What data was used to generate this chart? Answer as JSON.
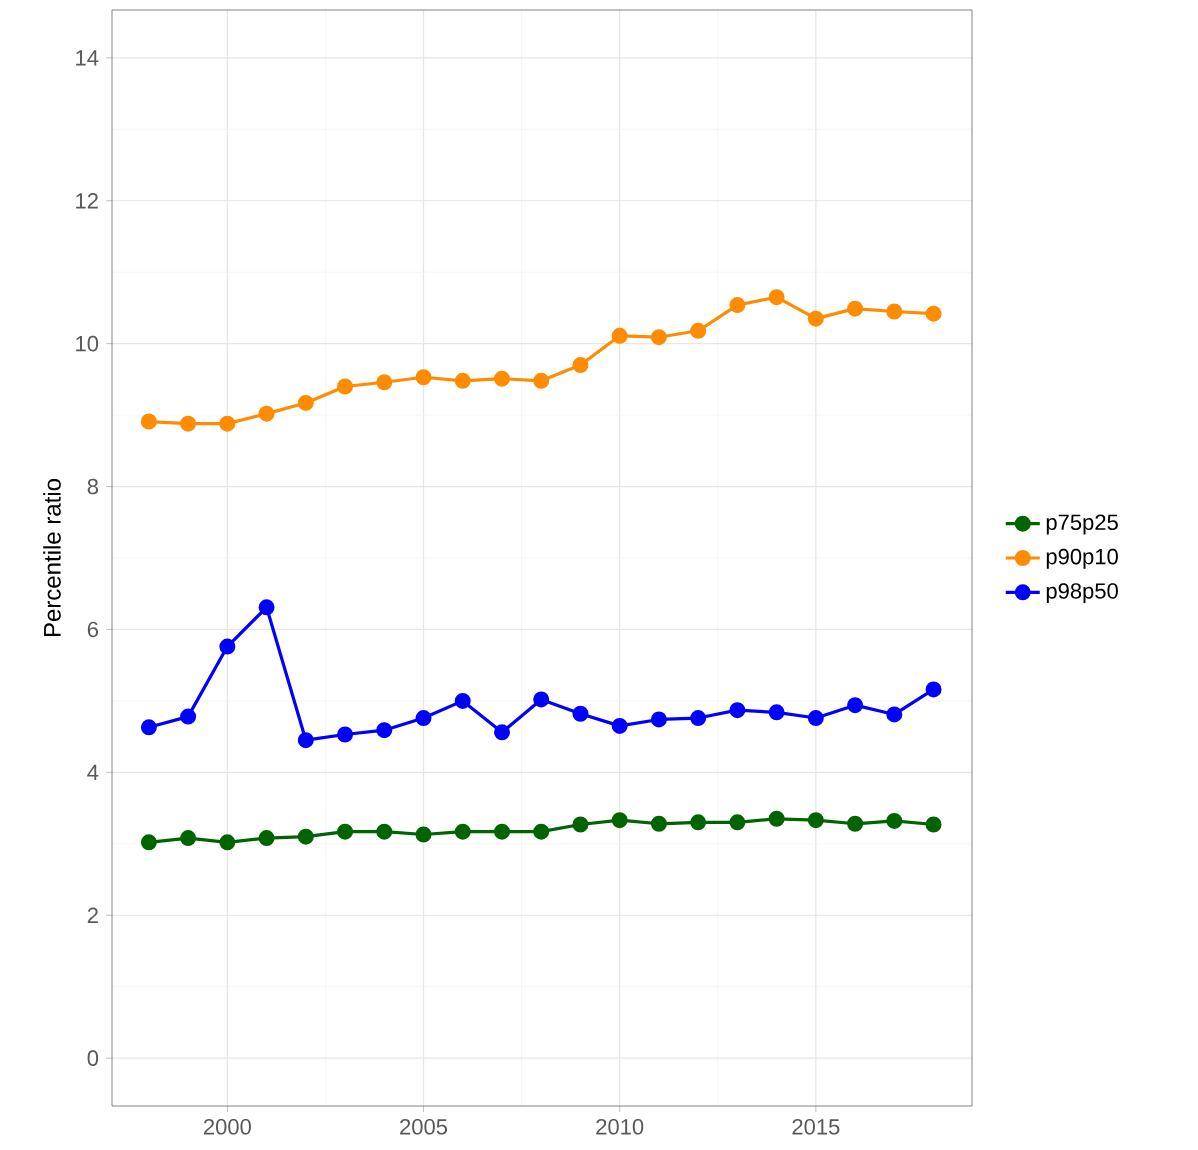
{
  "chart_data": {
    "type": "line",
    "ylabel": "Percentile ratio",
    "x": [
      1998,
      1999,
      2000,
      2001,
      2002,
      2003,
      2004,
      2005,
      2006,
      2007,
      2008,
      2009,
      2010,
      2011,
      2012,
      2013,
      2014,
      2015,
      2016,
      2017,
      2018
    ],
    "series": [
      {
        "name": "p75p25",
        "color": "#006400",
        "values": [
          3.02,
          3.08,
          3.02,
          3.08,
          3.1,
          3.17,
          3.17,
          3.13,
          3.17,
          3.17,
          3.17,
          3.27,
          3.33,
          3.28,
          3.3,
          3.3,
          3.35,
          3.33,
          3.28,
          3.32,
          3.27
        ]
      },
      {
        "name": "p90p10",
        "color": "#ff8c00",
        "values": [
          8.91,
          8.88,
          8.88,
          9.02,
          9.17,
          9.4,
          9.46,
          9.53,
          9.48,
          9.51,
          9.48,
          9.7,
          10.11,
          10.09,
          10.18,
          10.54,
          10.65,
          10.35,
          10.49,
          10.45,
          10.42
        ]
      },
      {
        "name": "p98p50",
        "color": "#0000ff",
        "values": [
          4.63,
          4.78,
          5.76,
          6.31,
          4.45,
          4.53,
          4.59,
          4.76,
          5.0,
          4.56,
          5.02,
          4.82,
          4.65,
          4.74,
          4.76,
          4.87,
          4.84,
          4.76,
          4.94,
          4.81,
          5.16
        ]
      }
    ],
    "xlim": [
      1997.06,
      2018.98
    ],
    "ylim": [
      -0.67,
      14.67
    ],
    "xticks": [
      2000,
      2005,
      2010,
      2015
    ],
    "yticks": [
      0,
      2,
      4,
      6,
      8,
      10,
      12,
      14
    ],
    "grid": true,
    "legend": "right",
    "marker": "circle",
    "line_style": "solid"
  }
}
